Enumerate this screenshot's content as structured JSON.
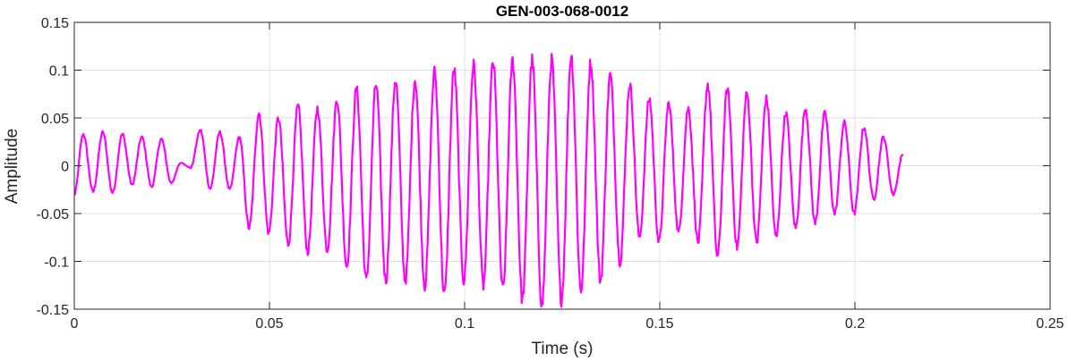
{
  "chart_data": {
    "type": "line",
    "title": "GEN-003-068-0012",
    "xlabel": "Time (s)",
    "ylabel": "Amplitude",
    "xlim": [
      0,
      0.25
    ],
    "ylim": [
      -0.15,
      0.15
    ],
    "grid": true,
    "x_ticks": [
      0,
      0.05,
      0.1,
      0.15,
      0.2,
      0.25
    ],
    "x_tick_labels": [
      "0",
      "0.05",
      "0.1",
      "0.15",
      "0.2",
      "0.25"
    ],
    "y_ticks": [
      -0.15,
      -0.1,
      -0.05,
      0,
      0.05,
      0.1,
      0.15
    ],
    "y_tick_labels": [
      "-0.15",
      "-0.1",
      "-0.05",
      "0",
      "0.05",
      "0.1",
      "0.15"
    ],
    "series": [
      {
        "color": "#ff00ff",
        "x": [
          0,
          0.0023,
          0.0048,
          0.0073,
          0.0098,
          0.0123,
          0.0148,
          0.0173,
          0.0198,
          0.0223,
          0.0248,
          0.0273,
          0.0298,
          0.0323,
          0.0348,
          0.0373,
          0.0398,
          0.0423,
          0.0448,
          0.0473,
          0.0498,
          0.0523,
          0.0548,
          0.0573,
          0.0598,
          0.0623,
          0.0648,
          0.0673,
          0.0698,
          0.0723,
          0.0748,
          0.0773,
          0.0798,
          0.0823,
          0.0848,
          0.0873,
          0.0898,
          0.0923,
          0.0948,
          0.0973,
          0.0998,
          0.1023,
          0.1048,
          0.1073,
          0.1098,
          0.1123,
          0.1148,
          0.1173,
          0.1198,
          0.1223,
          0.1248,
          0.1273,
          0.1298,
          0.1323,
          0.1348,
          0.1373,
          0.1398,
          0.1423,
          0.1448,
          0.1473,
          0.1498,
          0.1523,
          0.1548,
          0.1573,
          0.1598,
          0.1623,
          0.1648,
          0.1673,
          0.1698,
          0.1723,
          0.1748,
          0.1773,
          0.1798,
          0.1823,
          0.1848,
          0.1873,
          0.1898,
          0.1923,
          0.1948,
          0.1973,
          0.1998,
          0.2023,
          0.2048,
          0.2073,
          0.2098,
          0.2123
        ],
        "y": [
          -0.03,
          0.033,
          -0.027,
          0.035,
          -0.028,
          0.033,
          -0.02,
          0.03,
          -0.022,
          0.028,
          -0.018,
          0.003,
          -0.002,
          0.037,
          -0.024,
          0.035,
          -0.025,
          0.03,
          -0.065,
          0.055,
          -0.07,
          0.05,
          -0.082,
          0.062,
          -0.09,
          0.06,
          -0.088,
          0.07,
          -0.105,
          0.08,
          -0.12,
          0.085,
          -0.12,
          0.09,
          -0.12,
          0.09,
          -0.125,
          0.098,
          -0.135,
          0.1,
          -0.12,
          0.105,
          -0.125,
          0.108,
          -0.13,
          0.11,
          -0.14,
          0.11,
          -0.145,
          0.11,
          -0.14,
          0.115,
          -0.13,
          0.108,
          -0.12,
          0.095,
          -0.1,
          0.085,
          -0.075,
          0.07,
          -0.08,
          0.065,
          -0.07,
          0.06,
          -0.08,
          0.085,
          -0.095,
          0.08,
          -0.085,
          0.075,
          -0.08,
          0.07,
          -0.075,
          0.055,
          -0.065,
          0.06,
          -0.06,
          0.055,
          -0.05,
          0.045,
          -0.05,
          0.04,
          -0.035,
          0.03,
          -0.03,
          0.012
        ]
      }
    ]
  }
}
